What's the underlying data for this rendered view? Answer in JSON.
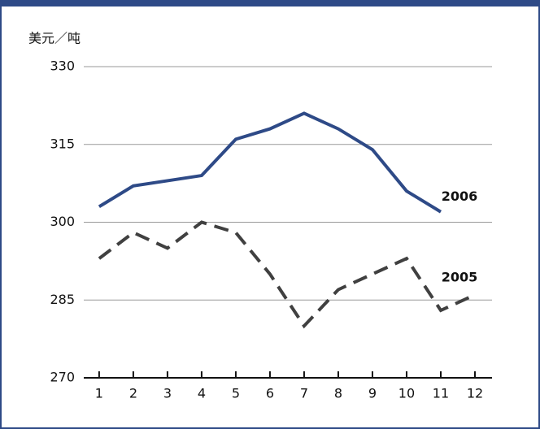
{
  "chart_data": {
    "type": "line",
    "y_label": "美元／吨",
    "x": [
      1,
      2,
      3,
      4,
      5,
      6,
      7,
      8,
      9,
      10,
      11,
      12
    ],
    "xlim": [
      0.55,
      12.5
    ],
    "xticks": [
      1,
      2,
      3,
      4,
      5,
      6,
      7,
      8,
      9,
      10,
      11,
      12
    ],
    "ylim": [
      270,
      330
    ],
    "yticks": [
      270,
      285,
      300,
      315,
      330
    ],
    "grid": true,
    "series": [
      {
        "name": "2006",
        "color": "#2e4a87",
        "dashed": false,
        "values": [
          303,
          307,
          308,
          309,
          316,
          318,
          321,
          318,
          314,
          306,
          302,
          null
        ]
      },
      {
        "name": "2005",
        "color": "#404040",
        "dashed": true,
        "values": [
          293,
          298,
          295,
          300,
          298,
          290,
          280,
          287,
          290,
          293,
          283,
          286
        ]
      }
    ]
  }
}
